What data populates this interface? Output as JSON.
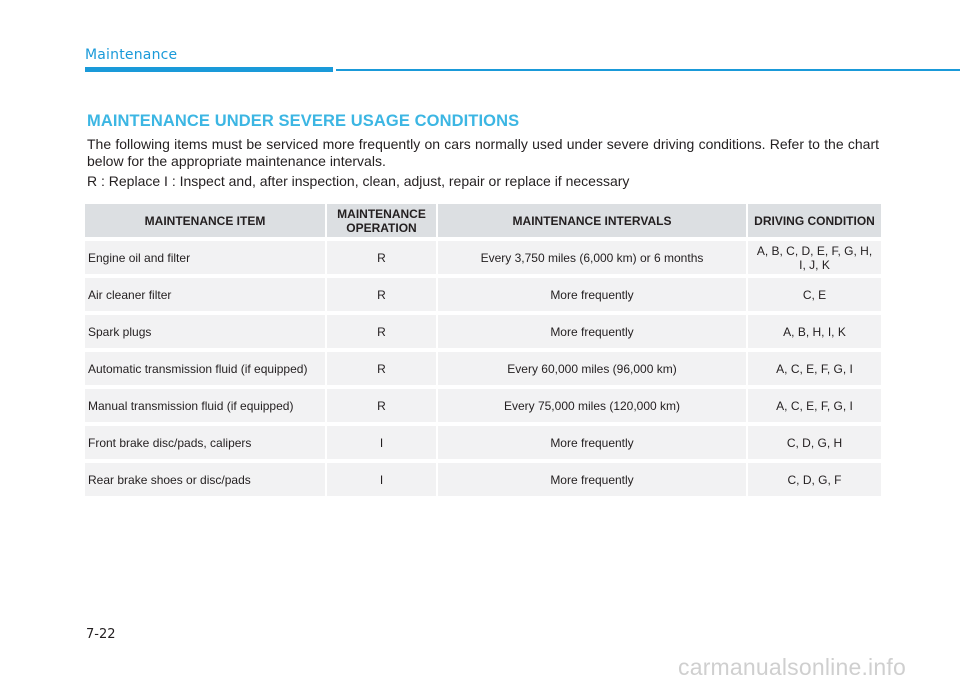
{
  "header": {
    "section": "Maintenance"
  },
  "heading": "MAINTENANCE UNDER SEVERE USAGE CONDITIONS",
  "intro": "The following items must be serviced more frequently on cars normally used under severe driving conditions. Refer to the chart below for the appropriate maintenance intervals.",
  "legend": "R : Replace  I : Inspect and, after inspection, clean, adjust, repair or replace if necessary",
  "table": {
    "headers": [
      "MAINTENANCE ITEM",
      "MAINTENANCE OPERATION",
      "MAINTENANCE INTERVALS",
      "DRIVING CONDITION"
    ],
    "rows": [
      {
        "item": "Engine oil and filter",
        "operation": "R",
        "interval": "Every 3,750 miles (6,000 km) or 6 months",
        "condition": "A, B, C, D, E, F, G, H, I, J, K"
      },
      {
        "item": "Air cleaner filter",
        "operation": "R",
        "interval": "More frequently",
        "condition": "C, E"
      },
      {
        "item": "Spark plugs",
        "operation": "R",
        "interval": "More frequently",
        "condition": "A, B, H, I, K"
      },
      {
        "item": "Automatic transmission fluid (if equipped)",
        "operation": "R",
        "interval": "Every 60,000 miles (96,000 km)",
        "condition": "A, C, E, F, G, I"
      },
      {
        "item": "Manual transmission fluid (if equipped)",
        "operation": "R",
        "interval": "Every 75,000 miles (120,000 km)",
        "condition": "A, C, E, F, G, I"
      },
      {
        "item": "Front brake disc/pads, calipers",
        "operation": "I",
        "interval": "More frequently",
        "condition": "C, D, G, H"
      },
      {
        "item": "Rear brake shoes or disc/pads",
        "operation": "I",
        "interval": "More frequently",
        "condition": "C, D, G, F"
      }
    ]
  },
  "page_number": "7-22",
  "watermark": "carmanualsonline.info",
  "colors": {
    "accent": "#1a9ad9",
    "heading": "#3cb6e3",
    "header_row": "#dcdfe2",
    "body_row": "#f2f2f3"
  }
}
